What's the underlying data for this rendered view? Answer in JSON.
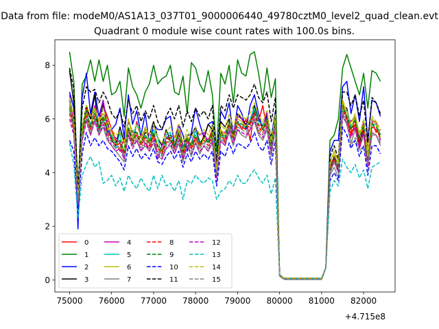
{
  "figure": {
    "suptitle": "Data from file: modeM0/AS1A13_037T01_9000006440_49780cztM0_level2_quad_clean.evt",
    "title": "Quadrant 0 module wise count rates with 100.0s bins.",
    "offset_label": "+4.715e8"
  },
  "chart_data": {
    "type": "line",
    "title": "Quadrant 0 module wise count rates with 100.0s bins.",
    "xlabel": "",
    "ylabel": "",
    "x_offset": 471500000,
    "xlim": [
      74650,
      82750
    ],
    "ylim": [
      -0.45,
      8.95
    ],
    "xticks": [
      75000,
      76000,
      77000,
      78000,
      79000,
      80000,
      81000,
      82000
    ],
    "yticks": [
      0,
      2,
      4,
      6,
      8
    ],
    "grid": false,
    "legend_loc": "lower left",
    "x": {
      "start": 75000,
      "step": 100,
      "count": 75
    },
    "gaps_zero_between": [
      79800,
      80800
    ],
    "series": [
      {
        "name": "0",
        "color": "#ff0000",
        "dash": "solid",
        "segA": [
          6.7,
          6.0,
          3.0,
          5.4,
          6.4,
          6.0,
          6.2,
          5.9,
          6.5,
          6.1,
          5.6,
          5.2,
          4.8,
          5.3,
          5.6,
          5.0,
          5.9,
          5.3,
          5.1,
          4.9,
          5.4,
          5.0,
          4.8,
          5.3,
          5.2,
          5.0,
          5.4,
          4.6,
          5.2,
          4.9,
          5.3,
          5.0,
          5.4,
          5.2,
          5.6,
          3.9,
          5.6,
          5.1,
          5.8,
          5.4,
          5.9,
          5.6,
          6.0,
          5.2,
          6.3,
          5.9,
          6.5,
          5.6,
          5.1,
          6.1
        ],
        "segB": [
          4.2,
          4.5,
          4.0,
          6.6,
          6.0,
          5.4,
          5.8,
          5.0,
          5.4,
          4.3,
          5.9,
          5.5,
          5.6,
          6.3,
          5.8,
          4.2
        ]
      },
      {
        "name": "1",
        "color": "#008000",
        "dash": "solid",
        "segA": [
          8.5,
          7.4,
          3.0,
          7.3,
          7.6,
          8.2,
          7.4,
          8.2,
          7.4,
          8.0,
          6.9,
          7.0,
          7.4,
          6.1,
          7.9,
          7.2,
          6.9,
          6.4,
          7.0,
          7.3,
          8.0,
          7.3,
          7.5,
          7.6,
          8.0,
          7.0,
          6.9,
          7.6,
          6.2,
          8.1,
          7.9,
          7.3,
          7.0,
          7.8,
          6.9,
          4.8,
          7.7,
          7.3,
          8.0,
          6.6,
          8.2,
          7.7,
          7.6,
          8.4,
          8.5,
          7.7,
          6.7,
          7.9,
          6.8,
          7.5
        ],
        "segB": [
          5.2,
          5.4,
          6.0,
          7.9,
          8.4,
          7.9,
          7.4,
          6.9,
          7.7,
          6.4,
          7.8,
          7.7,
          7.4,
          8.0,
          7.5,
          4.4
        ]
      },
      {
        "name": "2",
        "color": "#0000ff",
        "dash": "solid",
        "segA": [
          7.0,
          6.4,
          1.9,
          6.8,
          7.7,
          6.2,
          7.0,
          6.1,
          6.7,
          5.5,
          5.6,
          5.8,
          6.4,
          5.3,
          6.9,
          5.8,
          6.3,
          5.4,
          6.2,
          5.1,
          5.8,
          5.6,
          5.6,
          6.0,
          6.1,
          5.0,
          5.8,
          5.4,
          4.8,
          5.5,
          6.4,
          5.8,
          5.3,
          5.8,
          5.9,
          4.2,
          6.3,
          6.0,
          6.6,
          5.3,
          6.5,
          6.2,
          5.6,
          6.5,
          6.9,
          6.2,
          5.6,
          6.1,
          5.3,
          6.3
        ],
        "segB": [
          4.8,
          5.2,
          5.2,
          7.2,
          7.4,
          6.2,
          6.9,
          5.9,
          7.2,
          5.2,
          6.7,
          6.6,
          6.1,
          7.6,
          6.3,
          4.0
        ]
      },
      {
        "name": "3",
        "color": "#000000",
        "dash": "solid",
        "segA": [
          7.8,
          6.6,
          3.4,
          5.6,
          6.5,
          6.0,
          6.9,
          5.5,
          6.6,
          5.9,
          5.2,
          5.0,
          5.7,
          5.1,
          5.9,
          5.5,
          5.5,
          5.1,
          5.5,
          5.4,
          5.9,
          5.3,
          5.0,
          5.6,
          5.2,
          4.9,
          5.5,
          4.9,
          5.4,
          5.4,
          5.7,
          5.1,
          5.3,
          5.8,
          5.6,
          3.8,
          5.9,
          5.7,
          6.0,
          5.2,
          6.2,
          6.0,
          5.8,
          5.8,
          6.5,
          6.0,
          5.7,
          6.2,
          5.1,
          6.2
        ],
        "segB": [
          4.1,
          4.6,
          4.0,
          6.5,
          6.4,
          5.6,
          6.1,
          5.1,
          5.6,
          4.6,
          6.0,
          5.8,
          5.2,
          6.6,
          5.6,
          3.9
        ]
      },
      {
        "name": "4",
        "color": "#bf00bf",
        "dash": "solid",
        "segA": [
          6.9,
          5.8,
          2.9,
          5.5,
          6.3,
          5.7,
          6.5,
          5.9,
          6.7,
          5.8,
          5.3,
          5.3,
          5.1,
          4.5,
          5.6,
          5.4,
          5.4,
          5.3,
          5.6,
          5.4,
          5.4,
          4.5,
          5.0,
          5.3,
          5.4,
          5.3,
          5.8,
          5.0,
          5.1,
          5.1,
          5.6,
          5.4,
          5.5,
          5.1,
          5.3,
          4.0,
          5.5,
          5.5,
          5.8,
          5.5,
          6.1,
          6.0,
          5.7,
          5.9,
          6.3,
          6.0,
          5.6,
          6.3,
          4.8,
          6.0
        ],
        "segB": [
          4.2,
          4.6,
          4.3,
          6.6,
          6.1,
          5.9,
          6.1,
          5.3,
          5.9,
          4.9,
          5.9,
          5.9,
          5.2,
          6.4,
          6.0,
          3.8
        ]
      },
      {
        "name": "5",
        "color": "#00bfbf",
        "dash": "solid",
        "segA": [
          6.7,
          5.5,
          3.1,
          5.4,
          6.2,
          5.8,
          6.3,
          5.5,
          6.0,
          5.4,
          5.4,
          4.9,
          5.5,
          4.5,
          5.6,
          5.3,
          5.8,
          5.5,
          5.3,
          5.2,
          5.6,
          5.3,
          4.6,
          5.4,
          5.5,
          4.9,
          5.4,
          4.9,
          5.3,
          5.0,
          5.6,
          5.0,
          5.1,
          5.2,
          5.3,
          3.9,
          5.3,
          5.4,
          5.7,
          5.3,
          5.9,
          5.7,
          5.7,
          6.0,
          6.4,
          5.9,
          5.8,
          5.9,
          5.0,
          6.1
        ],
        "segB": [
          4.0,
          4.4,
          4.2,
          6.3,
          6.3,
          5.7,
          6.0,
          5.5,
          5.7,
          4.6,
          5.8,
          5.8,
          5.4,
          6.3,
          5.6,
          3.6
        ]
      },
      {
        "name": "6",
        "color": "#bfbf00",
        "dash": "solid",
        "segA": [
          6.6,
          5.7,
          3.3,
          5.5,
          6.2,
          5.6,
          6.4,
          5.9,
          6.2,
          5.7,
          5.5,
          5.1,
          4.9,
          4.9,
          6.0,
          5.3,
          5.5,
          5.1,
          5.7,
          5.1,
          5.5,
          5.0,
          4.7,
          5.1,
          5.2,
          5.1,
          5.6,
          4.7,
          5.4,
          5.0,
          5.2,
          4.9,
          5.3,
          5.1,
          5.5,
          4.1,
          5.6,
          5.4,
          5.9,
          5.3,
          6.0,
          5.9,
          5.7,
          6.0,
          6.0,
          5.5,
          5.7,
          6.0,
          5.0,
          6.1
        ],
        "segB": [
          4.4,
          4.8,
          4.4,
          6.7,
          6.1,
          5.6,
          6.1,
          5.4,
          5.8,
          4.8,
          6.0,
          5.8,
          5.3,
          6.6,
          5.7,
          3.5
        ]
      },
      {
        "name": "7",
        "color": "#808080",
        "dash": "solid",
        "segA": [
          6.5,
          5.5,
          3.2,
          5.2,
          6.0,
          5.4,
          6.0,
          5.4,
          5.7,
          5.2,
          5.0,
          4.8,
          4.6,
          4.4,
          5.4,
          5.0,
          5.2,
          4.8,
          5.0,
          4.8,
          5.1,
          4.6,
          4.5,
          4.9,
          5.0,
          4.7,
          5.1,
          4.4,
          5.0,
          4.6,
          5.1,
          4.7,
          5.0,
          4.8,
          5.1,
          3.8,
          5.2,
          5.0,
          5.5,
          5.0,
          5.6,
          5.4,
          5.3,
          5.6,
          5.9,
          5.4,
          5.2,
          5.6,
          4.6,
          5.7
        ],
        "segB": [
          3.9,
          4.2,
          3.8,
          6.1,
          5.8,
          5.1,
          5.6,
          4.9,
          5.4,
          4.3,
          5.4,
          5.4,
          5.0,
          6.0,
          5.3,
          3.4
        ]
      },
      {
        "name": "8",
        "color": "#ff0000",
        "dash": "dashed",
        "segA": [
          6.2,
          5.6,
          2.9,
          5.4,
          6.1,
          5.6,
          6.1,
          5.6,
          6.0,
          5.5,
          5.2,
          5.0,
          5.1,
          4.7,
          5.6,
          5.1,
          5.4,
          5.0,
          5.3,
          5.0,
          5.4,
          4.9,
          4.7,
          5.1,
          5.3,
          4.9,
          5.4,
          4.7,
          5.2,
          4.9,
          5.3,
          5.0,
          5.2,
          5.0,
          5.4,
          3.9,
          5.4,
          5.2,
          5.8,
          5.3,
          5.8,
          5.7,
          5.6,
          5.8,
          6.2,
          5.7,
          5.5,
          5.9,
          4.9,
          5.9
        ],
        "segB": [
          4.1,
          4.5,
          4.1,
          6.4,
          6.0,
          5.5,
          5.9,
          5.1,
          5.7,
          4.2,
          5.7,
          5.6,
          5.3,
          6.2,
          5.7,
          3.7
        ]
      },
      {
        "name": "9",
        "color": "#008000",
        "dash": "dashed",
        "segA": [
          6.4,
          5.8,
          3.1,
          5.5,
          6.3,
          5.7,
          6.2,
          5.7,
          6.1,
          5.6,
          5.3,
          5.1,
          5.2,
          4.8,
          5.7,
          5.2,
          5.5,
          5.1,
          5.4,
          5.1,
          5.5,
          5.0,
          4.8,
          5.2,
          5.4,
          5.0,
          5.5,
          4.8,
          5.3,
          5.0,
          5.4,
          5.1,
          5.3,
          5.1,
          5.5,
          4.0,
          5.5,
          5.3,
          5.9,
          5.4,
          5.9,
          5.8,
          5.7,
          5.9,
          6.3,
          5.8,
          5.6,
          6.0,
          5.0,
          6.0
        ],
        "segB": [
          4.2,
          4.6,
          4.2,
          6.5,
          6.1,
          5.6,
          6.0,
          5.2,
          5.8,
          4.4,
          5.8,
          5.7,
          5.4,
          6.3,
          5.8,
          3.8
        ]
      },
      {
        "name": "10",
        "color": "#0000ff",
        "dash": "dashed",
        "segA": [
          5.2,
          4.8,
          2.6,
          4.7,
          5.5,
          5.0,
          5.3,
          5.0,
          5.2,
          4.9,
          4.8,
          4.6,
          4.4,
          4.1,
          5.0,
          4.6,
          4.9,
          4.5,
          4.7,
          4.5,
          4.9,
          4.4,
          4.3,
          4.6,
          4.8,
          4.5,
          4.8,
          4.2,
          4.7,
          4.4,
          4.8,
          4.5,
          4.7,
          4.5,
          4.8,
          3.5,
          4.8,
          4.6,
          5.1,
          4.7,
          5.1,
          5.0,
          4.9,
          5.1,
          5.5,
          5.0,
          4.8,
          5.2,
          4.3,
          5.2
        ],
        "segB": [
          3.7,
          4.0,
          3.7,
          5.7,
          5.4,
          4.9,
          5.2,
          4.6,
          5.0,
          3.9,
          5.0,
          5.0,
          4.7,
          5.5,
          5.0,
          3.3
        ]
      },
      {
        "name": "11",
        "color": "#000000",
        "dash": "dashed",
        "segA": [
          7.9,
          7.1,
          3.3,
          6.4,
          7.2,
          7.0,
          7.1,
          6.6,
          7.0,
          6.7,
          6.2,
          6.0,
          6.3,
          5.7,
          6.7,
          6.2,
          6.5,
          5.9,
          6.3,
          6.0,
          6.5,
          5.9,
          5.6,
          6.1,
          6.4,
          6.0,
          6.5,
          5.7,
          6.3,
          5.9,
          6.4,
          6.1,
          6.3,
          6.0,
          6.5,
          4.4,
          6.5,
          6.3,
          6.9,
          6.4,
          6.9,
          6.8,
          6.7,
          6.9,
          7.3,
          6.8,
          6.6,
          7.0,
          5.9,
          6.8
        ],
        "segB": [
          4.6,
          5.0,
          4.5,
          7.0,
          7.0,
          6.5,
          6.9,
          6.1,
          6.7,
          5.1,
          6.8,
          6.6,
          6.2,
          7.2,
          6.7,
          4.0
        ]
      },
      {
        "name": "12",
        "color": "#bf00bf",
        "dash": "dashed",
        "segA": [
          6.0,
          5.4,
          2.8,
          5.2,
          5.9,
          5.4,
          5.9,
          5.4,
          5.8,
          5.3,
          5.0,
          4.8,
          4.9,
          4.5,
          5.4,
          4.9,
          5.2,
          4.8,
          5.1,
          4.8,
          5.2,
          4.7,
          4.5,
          4.9,
          5.1,
          4.7,
          5.2,
          4.5,
          5.0,
          4.7,
          5.1,
          4.8,
          5.0,
          4.8,
          5.2,
          3.8,
          5.2,
          5.0,
          5.6,
          5.1,
          5.6,
          5.5,
          5.4,
          5.6,
          6.0,
          5.5,
          5.3,
          5.7,
          4.7,
          5.7
        ],
        "segB": [
          4.0,
          4.4,
          4.0,
          6.2,
          5.8,
          5.3,
          5.7,
          4.9,
          5.5,
          4.2,
          5.5,
          5.4,
          5.1,
          6.0,
          5.5,
          3.6
        ]
      },
      {
        "name": "13",
        "color": "#00bfbf",
        "dash": "dashed",
        "segA": [
          5.1,
          4.3,
          2.3,
          3.9,
          4.3,
          4.6,
          4.2,
          4.4,
          3.6,
          3.7,
          3.9,
          3.5,
          3.8,
          3.3,
          3.9,
          3.6,
          3.4,
          3.8,
          3.5,
          3.3,
          3.9,
          3.4,
          3.9,
          3.5,
          3.6,
          3.3,
          3.7,
          3.0,
          3.7,
          3.6,
          3.9,
          3.7,
          3.6,
          3.8,
          3.7,
          3.0,
          3.3,
          3.4,
          3.7,
          3.5,
          3.9,
          3.6,
          3.6,
          3.9,
          4.1,
          3.8,
          3.6,
          3.9,
          3.2,
          3.8
        ],
        "segB": [
          3.3,
          3.7,
          3.5,
          4.5,
          4.2,
          4.0,
          4.3,
          3.8,
          4.1,
          3.4,
          4.2,
          4.3,
          4.4,
          4.6,
          4.3,
          2.4
        ]
      },
      {
        "name": "14",
        "color": "#bfbf00",
        "dash": "dashed",
        "segA": [
          6.8,
          6.1,
          3.0,
          5.7,
          6.5,
          6.1,
          6.4,
          5.9,
          6.4,
          5.9,
          5.6,
          5.4,
          5.5,
          5.1,
          6.0,
          5.5,
          5.8,
          5.3,
          5.7,
          5.4,
          5.8,
          5.3,
          5.1,
          5.5,
          5.7,
          5.3,
          5.8,
          5.1,
          5.6,
          5.3,
          5.7,
          5.4,
          5.6,
          5.4,
          5.8,
          4.1,
          5.8,
          5.6,
          6.2,
          5.7,
          6.2,
          6.1,
          6.0,
          6.2,
          6.6,
          6.1,
          5.9,
          6.3,
          5.2,
          6.2
        ],
        "segB": [
          4.3,
          4.7,
          4.3,
          6.7,
          6.3,
          5.8,
          6.2,
          5.4,
          6.0,
          4.6,
          6.1,
          5.9,
          5.6,
          6.5,
          6.0,
          3.9
        ]
      },
      {
        "name": "15",
        "color": "#808080",
        "dash": "dashed",
        "segA": [
          6.3,
          5.7,
          2.9,
          5.3,
          6.0,
          5.5,
          6.0,
          5.5,
          5.9,
          5.4,
          5.1,
          4.9,
          5.0,
          4.6,
          5.5,
          5.0,
          5.3,
          4.9,
          5.2,
          4.9,
          5.3,
          4.8,
          4.6,
          5.0,
          5.2,
          4.8,
          5.3,
          4.6,
          5.1,
          4.8,
          5.2,
          4.9,
          5.1,
          4.9,
          5.3,
          3.9,
          5.3,
          5.1,
          5.7,
          5.2,
          5.7,
          5.6,
          5.5,
          5.7,
          6.1,
          5.6,
          5.4,
          5.8,
          4.8,
          5.8
        ],
        "segB": [
          4.0,
          4.4,
          4.0,
          6.3,
          5.9,
          5.0,
          5.3,
          4.8,
          5.0,
          4.3,
          5.5,
          5.4,
          5.1,
          6.1,
          5.5,
          3.6
        ]
      }
    ]
  },
  "legend": {
    "entries": [
      "0",
      "1",
      "2",
      "3",
      "4",
      "5",
      "6",
      "7",
      "8",
      "9",
      "10",
      "11",
      "12",
      "13",
      "14",
      "15"
    ]
  }
}
